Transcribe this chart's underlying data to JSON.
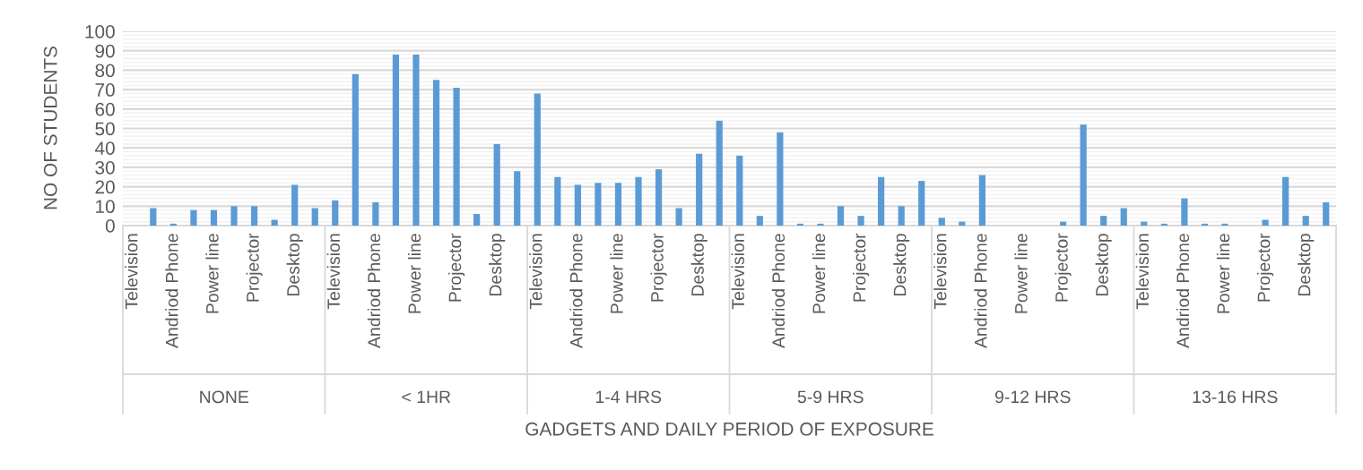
{
  "chart_data": {
    "type": "bar",
    "xlabel": "GADGETS AND DAILY PERIOD OF EXPOSURE",
    "ylabel": "NO OF STUDENTS",
    "categories": [
      "Television",
      null,
      "Andriod Phone",
      null,
      "Power line",
      null,
      "Projector",
      null,
      "Desktop",
      null,
      "Television",
      null,
      "Andriod Phone",
      null,
      "Power line",
      null,
      "Projector",
      null,
      "Desktop",
      null,
      "Television",
      null,
      "Andriod Phone",
      null,
      "Power line",
      null,
      "Projector",
      null,
      "Desktop",
      null,
      "Television",
      null,
      "Andriod Phone",
      null,
      "Power line",
      null,
      "Projector",
      null,
      "Desktop",
      null,
      "Television",
      null,
      "Andriod Phone",
      null,
      "Power line",
      null,
      "Projector",
      null,
      "Desktop",
      null,
      "Television",
      null,
      "Andriod Phone",
      null,
      "Power line",
      null,
      "Projector",
      null,
      "Desktop",
      null
    ],
    "values": [
      0,
      9,
      1,
      8,
      8,
      10,
      10,
      3,
      21,
      9,
      13,
      78,
      12,
      88,
      88,
      75,
      71,
      6,
      42,
      28,
      68,
      25,
      21,
      22,
      22,
      25,
      29,
      9,
      37,
      54,
      36,
      5,
      48,
      1,
      1,
      10,
      5,
      25,
      10,
      23,
      4,
      2,
      26,
      0,
      0,
      0,
      2,
      52,
      5,
      9,
      2,
      1,
      14,
      1,
      1,
      0,
      3,
      25,
      5,
      12
    ],
    "color": "#5b9bd5",
    "annotations": [
      "NONE",
      "< 1HR",
      "1-4 HRS",
      "5-9 HRS",
      "9-12 HRS",
      "13-16 HRS"
    ],
    "ylim": [
      0,
      100
    ],
    "yticks": [
      0,
      10,
      20,
      30,
      40,
      50,
      60,
      70,
      80,
      90,
      100
    ],
    "grid": "y",
    "legend": false
  }
}
